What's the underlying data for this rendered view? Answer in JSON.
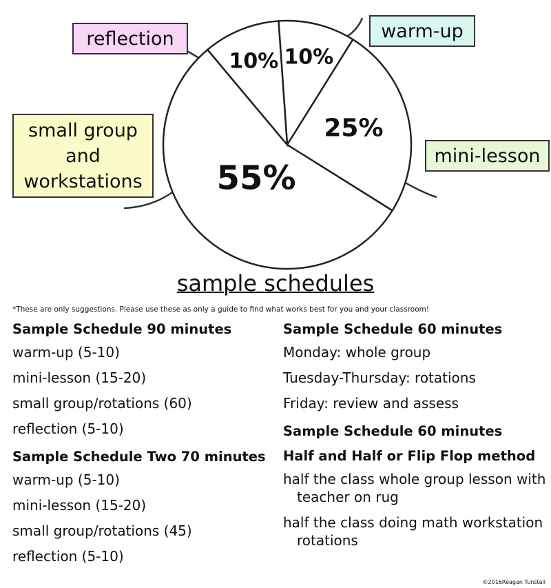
{
  "chart_data": {
    "type": "pie",
    "categories": [
      "warm-up",
      "mini-lesson",
      "small group and workstations",
      "reflection"
    ],
    "values": [
      10,
      25,
      55,
      10
    ],
    "value_labels": [
      "10%",
      "25%",
      "55%",
      "10%"
    ],
    "color": "#ffffff",
    "colors": [
      "#d9f6f0",
      "#e6f8d6",
      "#fbfbc8",
      "#f7d6f6"
    ]
  },
  "document": {
    "title": "sample schedules",
    "note": "*These are only suggestions.  Please use these as only a guide to find what works best for you and your classroom!",
    "columns": [
      {
        "sections": [
          {
            "heading": "Sample Schedule 90 minutes",
            "items": [
              "warm-up (5-10)",
              "mini-lesson (15-20)",
              "small group/rotations (60)",
              "reflection (5-10)"
            ]
          },
          {
            "heading": "Sample Schedule Two 70 minutes",
            "items": [
              "warm-up (5-10)",
              "mini-lesson (15-20)",
              "small group/rotations (45)",
              "reflection (5-10)"
            ]
          }
        ]
      },
      {
        "sections": [
          {
            "heading": "Sample Schedule 60 minutes",
            "items": [
              "Monday: whole group",
              "Tuesday-Thursday: rotations",
              "Friday: review and assess"
            ]
          },
          {
            "heading": "Sample Schedule 60 minutes",
            "subheading": "Half and Half or Flip Flop method",
            "items": [
              "half the class whole group lesson with teacher on rug",
              "half the class doing math workstation rotations"
            ]
          }
        ]
      }
    ]
  },
  "footer": "©2016Reagan Tunstall"
}
